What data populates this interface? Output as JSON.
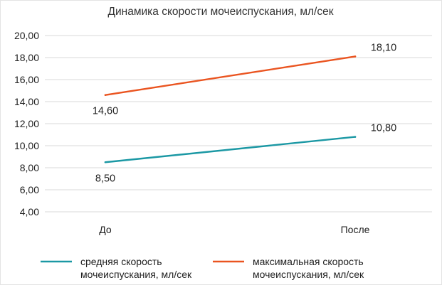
{
  "chart_data": {
    "type": "line",
    "title": "Динамика скорости мочеиспускания, мл/сек",
    "categories": [
      "До",
      "После"
    ],
    "series": [
      {
        "name_lines": [
          "средняя скорость",
          "мочеиспускания, мл/сек"
        ],
        "values": [
          8.5,
          10.8
        ],
        "value_labels": [
          "8,50",
          "10,80"
        ],
        "color": "#1b98a4"
      },
      {
        "name_lines": [
          "максимальная скорость",
          "мочеиспускания, мл/сек"
        ],
        "values": [
          14.6,
          18.1
        ],
        "value_labels": [
          "14,60",
          "18,10"
        ],
        "color": "#ea5420"
      }
    ],
    "y_ticks": [
      4,
      6,
      8,
      10,
      12,
      14,
      16,
      18,
      20
    ],
    "y_tick_labels": [
      "4,00",
      "6,00",
      "8,00",
      "10,00",
      "12,00",
      "14,00",
      "16,00",
      "18,00",
      "20,00"
    ],
    "ylim": [
      4,
      20
    ],
    "grid": true,
    "legend_position": "bottom"
  }
}
